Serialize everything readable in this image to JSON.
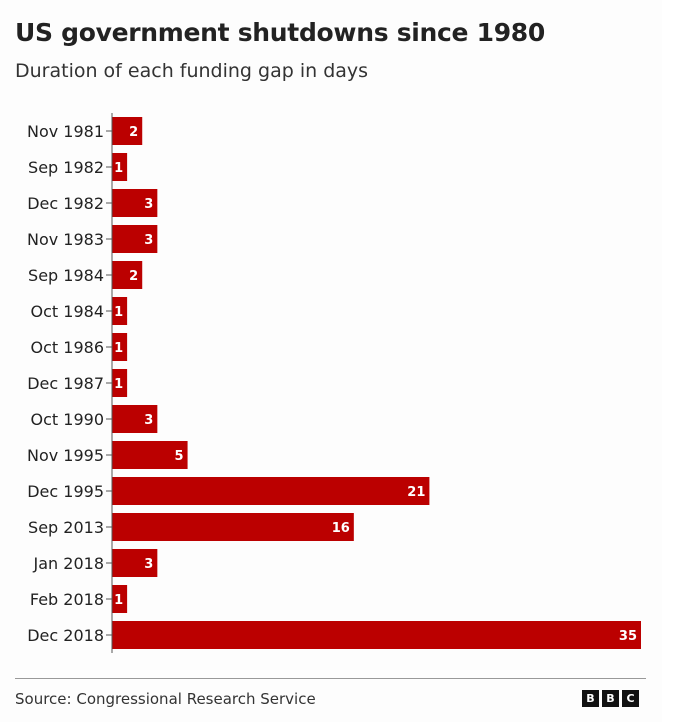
{
  "chart_data": {
    "type": "bar",
    "orientation": "horizontal",
    "title": "US government shutdowns since 1980",
    "subtitle": "Duration of each funding gap in days",
    "categories": [
      "Nov 1981",
      "Sep 1982",
      "Dec 1982",
      "Nov 1983",
      "Sep 1984",
      "Oct 1984",
      "Oct 1986",
      "Dec 1987",
      "Oct 1990",
      "Nov 1995",
      "Dec 1995",
      "Sep 2013",
      "Jan 2018",
      "Feb 2018",
      "Dec 2018"
    ],
    "values": [
      2,
      1,
      3,
      3,
      2,
      1,
      1,
      1,
      3,
      5,
      21,
      16,
      3,
      1,
      35
    ],
    "xlabel": "",
    "ylabel": "",
    "xlim": [
      0,
      35
    ],
    "grid": false,
    "bar_color": "#bb0000",
    "label_color": "#ffffff"
  },
  "footer": {
    "source": "Source: Congressional Research Service",
    "logo_letters": [
      "B",
      "B",
      "C"
    ]
  }
}
